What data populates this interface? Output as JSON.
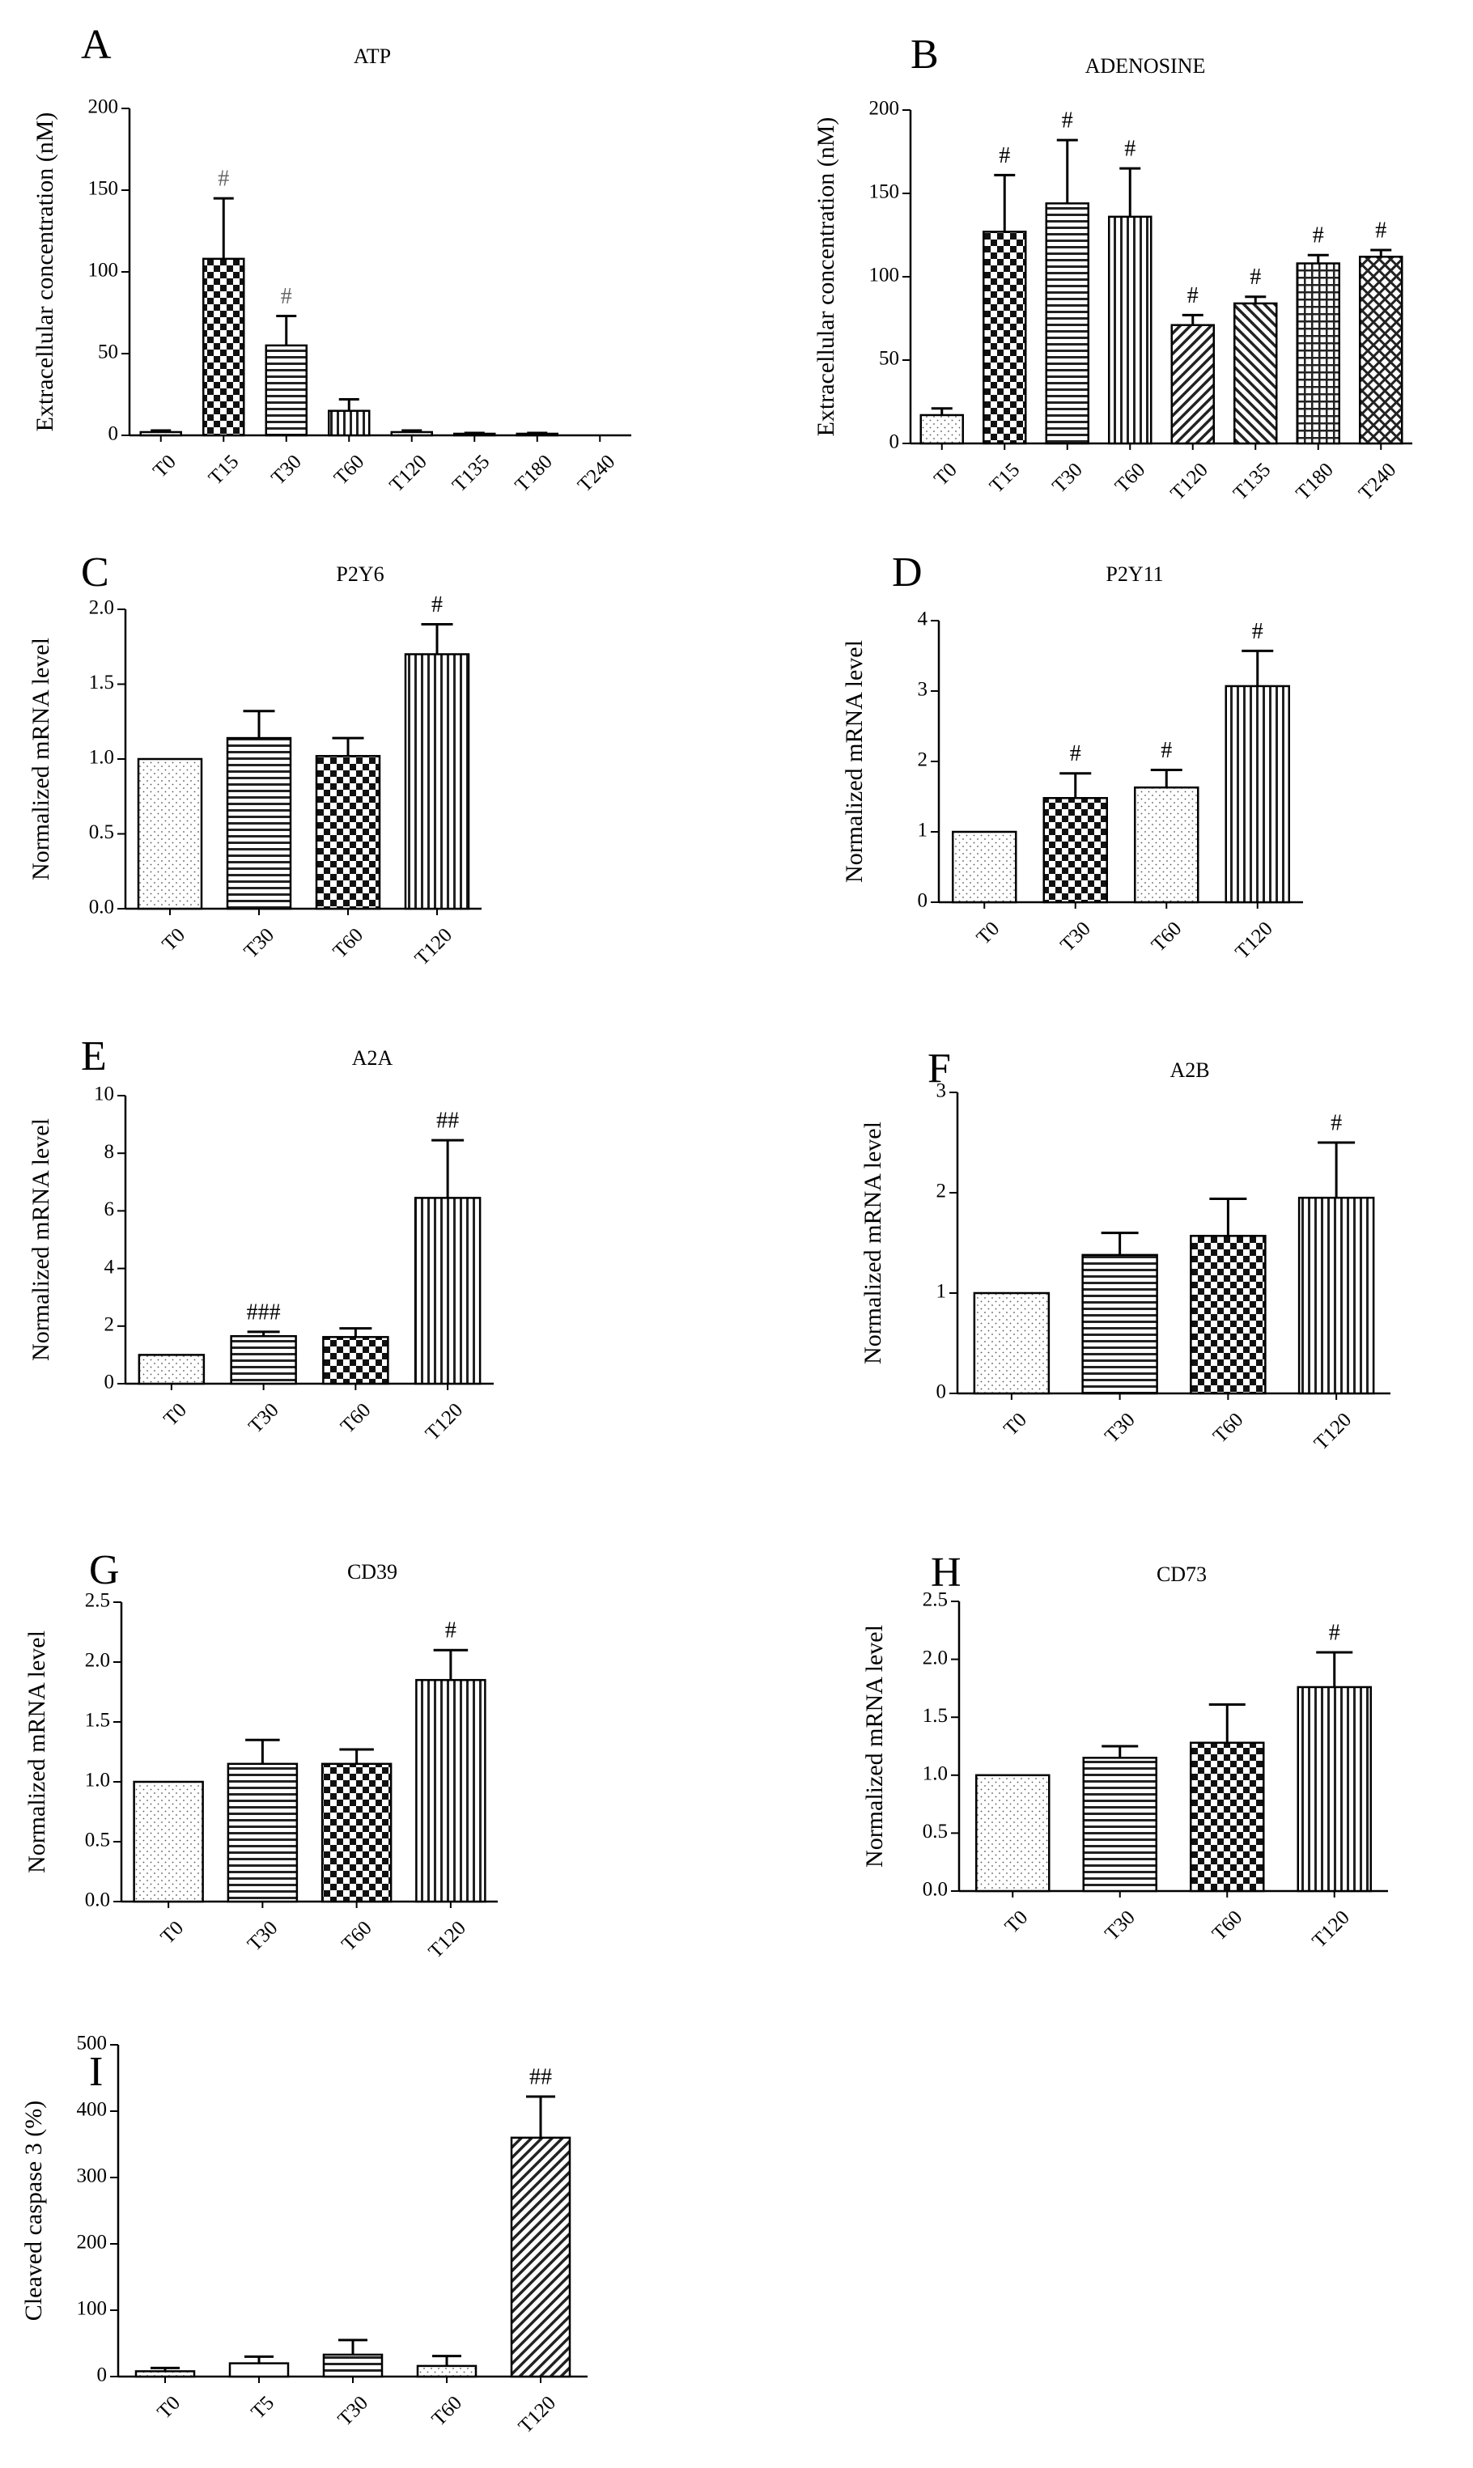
{
  "chart_data": [
    {
      "panel": "A",
      "type": "bar",
      "title": "ATP",
      "ylabel": "Extracellular concentration (nM)",
      "xlabel": "",
      "categories": [
        "T0",
        "T15",
        "T30",
        "T60",
        "T120",
        "T135",
        "T180",
        "T240"
      ],
      "values": [
        2,
        108,
        55,
        15,
        2,
        1,
        1,
        0
      ],
      "errors": [
        1,
        37,
        18,
        7,
        1,
        0.5,
        0.5,
        0
      ],
      "annotations": [
        "",
        "#",
        "#",
        "",
        "",
        "",
        "",
        ""
      ],
      "patterns": [
        "dots",
        "check",
        "hlines",
        "vlines",
        "dots",
        "dots",
        "dots",
        "dots"
      ],
      "ylim": [
        0,
        200
      ],
      "yticks": [
        0,
        50,
        100,
        150,
        200
      ]
    },
    {
      "panel": "B",
      "type": "bar",
      "title": "ADENOSINE",
      "ylabel": "Extracellular concentration (nM)",
      "xlabel": "",
      "categories": [
        "T0",
        "T15",
        "T30",
        "T60",
        "T120",
        "T135",
        "T180",
        "T240"
      ],
      "values": [
        17,
        127,
        144,
        136,
        71,
        84,
        108,
        112
      ],
      "errors": [
        4,
        34,
        38,
        29,
        6,
        4,
        5,
        4
      ],
      "annotations": [
        "",
        "#",
        "#",
        "#",
        "#",
        "#",
        "#",
        "#"
      ],
      "patterns": [
        "dots",
        "check",
        "hlines",
        "vlines",
        "diag",
        "diag2",
        "grid",
        "crossdiag"
      ],
      "ylim": [
        0,
        200
      ],
      "yticks": [
        0,
        50,
        100,
        150,
        200
      ]
    },
    {
      "panel": "C",
      "type": "bar",
      "title": "P2Y6",
      "ylabel": "Normalized mRNA level",
      "xlabel": "",
      "categories": [
        "T0",
        "T30",
        "T60",
        "T120"
      ],
      "values": [
        1.0,
        1.14,
        1.02,
        1.7
      ],
      "errors": [
        0,
        0.18,
        0.12,
        0.2
      ],
      "annotations": [
        "",
        "",
        "",
        "#"
      ],
      "patterns": [
        "dots",
        "hlines",
        "check",
        "vlines"
      ],
      "ylim": [
        0,
        2.0
      ],
      "yticks": [
        "0.0",
        "0.5",
        "1.0",
        "1.5",
        "2.0"
      ]
    },
    {
      "panel": "D",
      "type": "bar",
      "title": "P2Y11",
      "ylabel": "Normalized mRNA level",
      "xlabel": "",
      "categories": [
        "T0",
        "T30",
        "T60",
        "T120"
      ],
      "values": [
        1.0,
        1.48,
        1.63,
        3.07
      ],
      "errors": [
        0,
        0.35,
        0.25,
        0.5
      ],
      "annotations": [
        "",
        "#",
        "#",
        "#"
      ],
      "patterns": [
        "dots",
        "check",
        "dots",
        "vlines"
      ],
      "ylim": [
        0,
        4
      ],
      "yticks": [
        0,
        1,
        2,
        3,
        4
      ]
    },
    {
      "panel": "E",
      "type": "bar",
      "title": "A2A",
      "ylabel": "Normalized mRNA level",
      "xlabel": "",
      "categories": [
        "T0",
        "T30",
        "T60",
        "T120"
      ],
      "values": [
        1.0,
        1.65,
        1.62,
        6.45
      ],
      "errors": [
        0,
        0.15,
        0.3,
        2.0
      ],
      "annotations": [
        "",
        "###",
        "",
        "##"
      ],
      "patterns": [
        "dots",
        "hlines",
        "check",
        "vlines"
      ],
      "ylim": [
        0,
        10
      ],
      "yticks": [
        0,
        2,
        4,
        6,
        8,
        10
      ]
    },
    {
      "panel": "F",
      "type": "bar",
      "title": "A2B",
      "ylabel": "Normalized mRNA level",
      "xlabel": "",
      "categories": [
        "T0",
        "T30",
        "T60",
        "T120"
      ],
      "values": [
        1.0,
        1.38,
        1.57,
        1.95
      ],
      "errors": [
        0,
        0.22,
        0.37,
        0.55
      ],
      "annotations": [
        "",
        "",
        "",
        "#"
      ],
      "patterns": [
        "dots",
        "hlines",
        "check",
        "vlines"
      ],
      "ylim": [
        0,
        3
      ],
      "yticks": [
        0,
        1,
        2,
        3
      ]
    },
    {
      "panel": "G",
      "type": "bar",
      "title": "CD39",
      "ylabel": "Normalized mRNA level",
      "xlabel": "",
      "categories": [
        "T0",
        "T30",
        "T60",
        "T120"
      ],
      "values": [
        1.0,
        1.15,
        1.15,
        1.85
      ],
      "errors": [
        0,
        0.2,
        0.12,
        0.25
      ],
      "annotations": [
        "",
        "",
        "",
        "#"
      ],
      "patterns": [
        "dots",
        "hlines",
        "check",
        "vlines"
      ],
      "ylim": [
        0,
        2.5
      ],
      "yticks": [
        "0.0",
        "0.5",
        "1.0",
        "1.5",
        "2.0",
        "2.5"
      ]
    },
    {
      "panel": "H",
      "type": "bar",
      "title": "CD73",
      "ylabel": "Normalized mRNA level",
      "xlabel": "",
      "categories": [
        "T0",
        "T30",
        "T60",
        "T120"
      ],
      "values": [
        1.0,
        1.15,
        1.28,
        1.76
      ],
      "errors": [
        0,
        0.1,
        0.33,
        0.3
      ],
      "annotations": [
        "",
        "",
        "",
        "#"
      ],
      "patterns": [
        "dots",
        "hlines",
        "check",
        "vlines"
      ],
      "ylim": [
        0,
        2.5
      ],
      "yticks": [
        "0.0",
        "0.5",
        "1.0",
        "1.5",
        "2.0",
        "2.5"
      ]
    },
    {
      "panel": "I",
      "type": "bar",
      "title": "",
      "ylabel": "Cleaved caspase 3 (%)",
      "xlabel": "",
      "categories": [
        "T0",
        "T5",
        "T30",
        "T60",
        "T120"
      ],
      "values": [
        8,
        20,
        33,
        16,
        360
      ],
      "errors": [
        5,
        10,
        22,
        15,
        62
      ],
      "annotations": [
        "",
        "",
        "",
        "",
        "##"
      ],
      "patterns": [
        "dots",
        "none",
        "hlines",
        "dots",
        "diag"
      ],
      "ylim": [
        0,
        500
      ],
      "yticks": [
        0,
        100,
        200,
        300,
        400,
        500
      ]
    }
  ]
}
